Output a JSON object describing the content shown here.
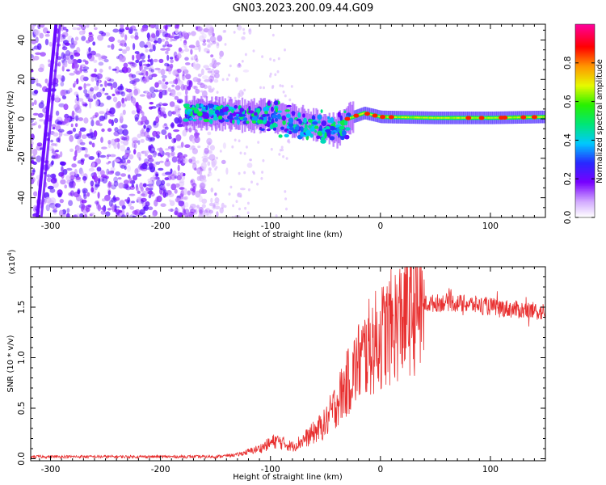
{
  "figure_title": "GN03.2023.200.09.44.G09",
  "chart_data": [
    {
      "type": "heatmap",
      "xlabel": "Height of straight line (km)",
      "ylabel": "Frequency (Hz)",
      "xlim": [
        -318,
        150
      ],
      "ylim": [
        -50,
        48
      ],
      "x_ticks": [
        -300,
        -200,
        -100,
        0,
        100
      ],
      "x_tick_labels": [
        "-300",
        "-200",
        "-100",
        "0",
        "100"
      ],
      "y_ticks": [
        -40,
        -20,
        0,
        20,
        40
      ],
      "y_tick_labels": [
        "-40",
        "-20",
        "0",
        "20",
        "40"
      ],
      "colorbar": {
        "label": "Normalized spectral amplitude",
        "range": [
          0.0,
          1.0
        ],
        "ticks": [
          0.0,
          0.2,
          0.4,
          0.6,
          0.8
        ],
        "tick_labels": [
          "0.0",
          "0.2",
          "0.4",
          "0.6",
          "0.8"
        ]
      },
      "ridge": {
        "description_points": [
          {
            "x": -175,
            "y": 3.0
          },
          {
            "x": -140,
            "y": 2.5
          },
          {
            "x": -120,
            "y": 1.5
          },
          {
            "x": -100,
            "y": 2.0
          },
          {
            "x": -80,
            "y": -1.0
          },
          {
            "x": -60,
            "y": -3.0
          },
          {
            "x": -40,
            "y": -6.0
          },
          {
            "x": -30,
            "y": 0.0
          },
          {
            "x": -15,
            "y": 3.0
          },
          {
            "x": 0,
            "y": 1.0
          },
          {
            "x": 50,
            "y": 0.5
          },
          {
            "x": 100,
            "y": 0.5
          },
          {
            "x": 150,
            "y": 1.0
          }
        ]
      },
      "diagonal_feature": [
        {
          "x": -295,
          "y": 48
        },
        {
          "x": -312,
          "y": -50
        }
      ]
    },
    {
      "type": "line",
      "xlabel": "Height of straight line (km)",
      "ylabel": "SNR (10 * v/v)",
      "y_multiplier_label": "(x10",
      "y_multiplier_exp": "4",
      "y_multiplier_close": ")",
      "xlim": [
        -318,
        150
      ],
      "ylim": [
        -0.02,
        1.9
      ],
      "x_ticks": [
        -300,
        -200,
        -100,
        0,
        100
      ],
      "x_tick_labels": [
        "-300",
        "-200",
        "-100",
        "0",
        "100"
      ],
      "y_ticks": [
        0.0,
        0.5,
        1.0,
        1.5
      ],
      "y_tick_labels": [
        "0.0",
        "0.5",
        "1.0",
        "1.5"
      ],
      "series_color": "#e83030",
      "envelope": [
        {
          "x": -318,
          "y": 0.02
        },
        {
          "x": -150,
          "y": 0.02
        },
        {
          "x": -130,
          "y": 0.04
        },
        {
          "x": -110,
          "y": 0.1
        },
        {
          "x": -95,
          "y": 0.18
        },
        {
          "x": -80,
          "y": 0.12
        },
        {
          "x": -65,
          "y": 0.22
        },
        {
          "x": -50,
          "y": 0.35
        },
        {
          "x": -40,
          "y": 0.55
        },
        {
          "x": -30,
          "y": 0.75
        },
        {
          "x": -20,
          "y": 0.95
        },
        {
          "x": -10,
          "y": 1.1
        },
        {
          "x": 0,
          "y": 1.2
        },
        {
          "x": 10,
          "y": 1.3
        },
        {
          "x": 25,
          "y": 1.45
        },
        {
          "x": 40,
          "y": 1.53
        },
        {
          "x": 60,
          "y": 1.55
        },
        {
          "x": 90,
          "y": 1.52
        },
        {
          "x": 120,
          "y": 1.48
        },
        {
          "x": 150,
          "y": 1.45
        }
      ]
    }
  ]
}
